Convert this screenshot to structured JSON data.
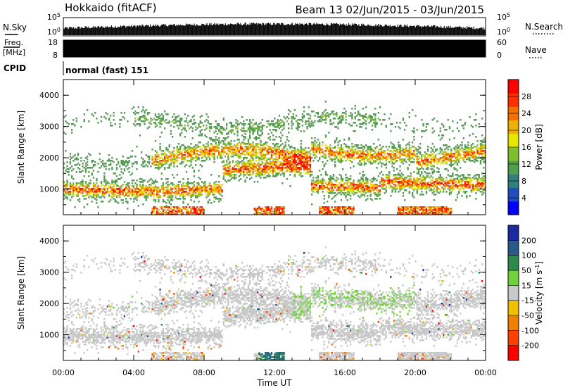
{
  "header": {
    "title": "Hokkaido (fitACF)",
    "beam_date": "Beam 13  02/Jun/2015 - 03/Jun/2015"
  },
  "panels": {
    "nsky_label": "N.Sky",
    "nsky_ticks": [
      "10^5",
      "10^0"
    ],
    "nsearch_label": "N.Search",
    "freq_label": "Freq.",
    "freq_unit": "[MHz]",
    "freq_ticks": [
      "18",
      "8"
    ],
    "nave_ticks": [
      "60",
      "0"
    ],
    "nave_label": "Nave",
    "cpid_label": "CPID",
    "cpid_text": "normal (fast) 151"
  },
  "chart_data": [
    {
      "type": "heatmap",
      "name": "power",
      "ylabel": "Slant Range [km]",
      "xlabel": "",
      "x_ticks": [],
      "y_ticks": [
        "1000",
        "2000",
        "3000",
        "4000"
      ],
      "ylim": [
        180,
        4500
      ],
      "xlim_hours": [
        0,
        24
      ],
      "colorbar": {
        "label": "Power [dB]",
        "ticks": [
          "4",
          "8",
          "12",
          "16",
          "20",
          "24",
          "28"
        ],
        "colors": [
          "#0000ff",
          "#1f4fbf",
          "#2f7f7f",
          "#4f9f4f",
          "#7fbf2f",
          "#e6e600",
          "#f0b000",
          "#f07000",
          "#ff3000",
          "#ff0000"
        ]
      }
    },
    {
      "type": "heatmap",
      "name": "velocity",
      "ylabel": "Slant Range [km]",
      "xlabel": "Time UT",
      "x_ticks": [
        "00:00",
        "04:00",
        "08:00",
        "12:00",
        "16:00",
        "20:00",
        "00:00"
      ],
      "y_ticks": [
        "1000",
        "2000",
        "3000",
        "4000"
      ],
      "ylim": [
        180,
        4500
      ],
      "xlim_hours": [
        0,
        24
      ],
      "colorbar": {
        "label": "Velocity [m s^-1]",
        "ticks": [
          "200",
          "100",
          "50",
          "15",
          "-15",
          "-50",
          "-100",
          "-200"
        ],
        "colors": [
          "#1a2aa0",
          "#2a5a8a",
          "#2e8a4a",
          "#6fd23a",
          "#c8c8c8",
          "#f0c000",
          "#f08000",
          "#ff4000",
          "#ff0000"
        ]
      }
    }
  ]
}
